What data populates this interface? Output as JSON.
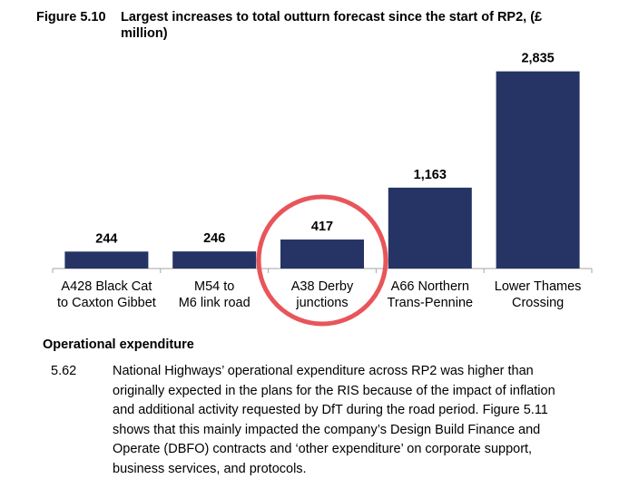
{
  "figure": {
    "number": "Figure 5.10",
    "title": "Largest increases to total outturn forecast since the start of RP2, (£ million)"
  },
  "chart_data": {
    "type": "bar",
    "categories": [
      [
        "A428 Black Cat",
        "to Caxton Gibbet"
      ],
      [
        "M54 to",
        "M6 link road"
      ],
      [
        "A38 Derby",
        "junctions"
      ],
      [
        "A66 Northern",
        "Trans-Pennine"
      ],
      [
        "Lower Thames",
        "Crossing"
      ]
    ],
    "values": [
      244,
      246,
      417,
      1163,
      2835
    ],
    "data_labels": [
      "244",
      "246",
      "417",
      "1,163",
      "2,835"
    ],
    "bar_color": "#253465",
    "highlight": {
      "category_index": 2,
      "shape": "circle",
      "color": "#e8555a"
    },
    "ylim": [
      0,
      3000
    ],
    "grid": false,
    "legend": "none"
  },
  "section": {
    "heading": "Operational expenditure",
    "paragraph_number": "5.62",
    "paragraph_lines": [
      "National Highways’ operational expenditure across RP2 was higher than",
      "originally expected in the plans for the RIS because of the impact of inflation",
      "and additional activity requested by DfT during the road period. Figure 5.11",
      "shows that this mainly impacted the company’s Design Build Finance and",
      "Operate (DBFO) contracts and ‘other expenditure’ on corporate support,",
      "business services, and protocols."
    ]
  }
}
